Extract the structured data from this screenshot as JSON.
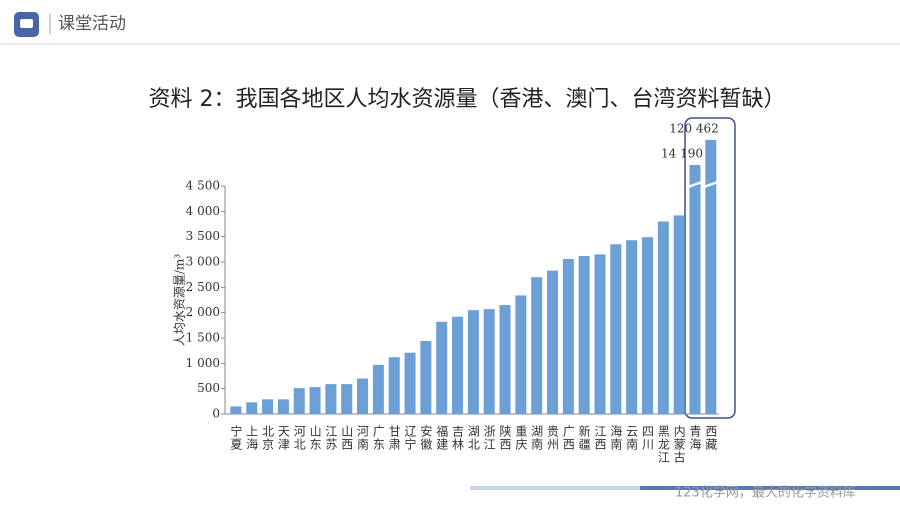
{
  "header": {
    "title": "课堂活动"
  },
  "footer": {
    "watermark": "123化学网，最大的化学资料库"
  },
  "chart_data": {
    "type": "bar",
    "title": "资料 2：我国各地区人均水资源量（香港、澳门、台湾资料暂缺）",
    "y_label": "人均水资源量/m³",
    "categories": [
      "宁夏",
      "上海",
      "北京",
      "天津",
      "河北",
      "山东",
      "江苏",
      "山西",
      "河南",
      "广东",
      "甘肃",
      "辽宁",
      "安徽",
      "福建",
      "吉林",
      "湖北",
      "浙江",
      "陕西",
      "重庆",
      "湖南",
      "贵州",
      "广西",
      "新疆",
      "江西",
      "海南",
      "云南",
      "四川",
      "黑龙江",
      "内蒙古",
      "青海",
      "西藏"
    ],
    "values": [
      150,
      230,
      290,
      290,
      510,
      530,
      590,
      590,
      700,
      970,
      1120,
      1210,
      1440,
      1820,
      1920,
      2050,
      2070,
      2150,
      2340,
      2700,
      2830,
      3060,
      3120,
      3150,
      3350,
      3430,
      3490,
      3800,
      3920,
      14190,
      120462
    ],
    "value_labels": [
      null,
      null,
      null,
      null,
      null,
      null,
      null,
      null,
      null,
      null,
      null,
      null,
      null,
      null,
      null,
      null,
      null,
      null,
      null,
      null,
      null,
      null,
      null,
      null,
      null,
      null,
      null,
      null,
      null,
      "14 190",
      "120 462"
    ],
    "color": "#6b9fd6",
    "ylim": [
      0,
      4500
    ],
    "yticks": [
      0,
      500,
      {
        "value": 1000,
        "label": "1 000"
      },
      {
        "value": 1500,
        "label": "1 500"
      },
      {
        "value": 2000,
        "label": "2 000"
      },
      {
        "value": 2500,
        "label": "2 500"
      },
      {
        "value": 3000,
        "label": "3 000"
      },
      {
        "value": 3500,
        "label": "3 500"
      },
      {
        "value": 4000,
        "label": "4 000"
      },
      {
        "value": 4500,
        "label": "4 500"
      }
    ],
    "broken_axis": true,
    "grid": false
  }
}
